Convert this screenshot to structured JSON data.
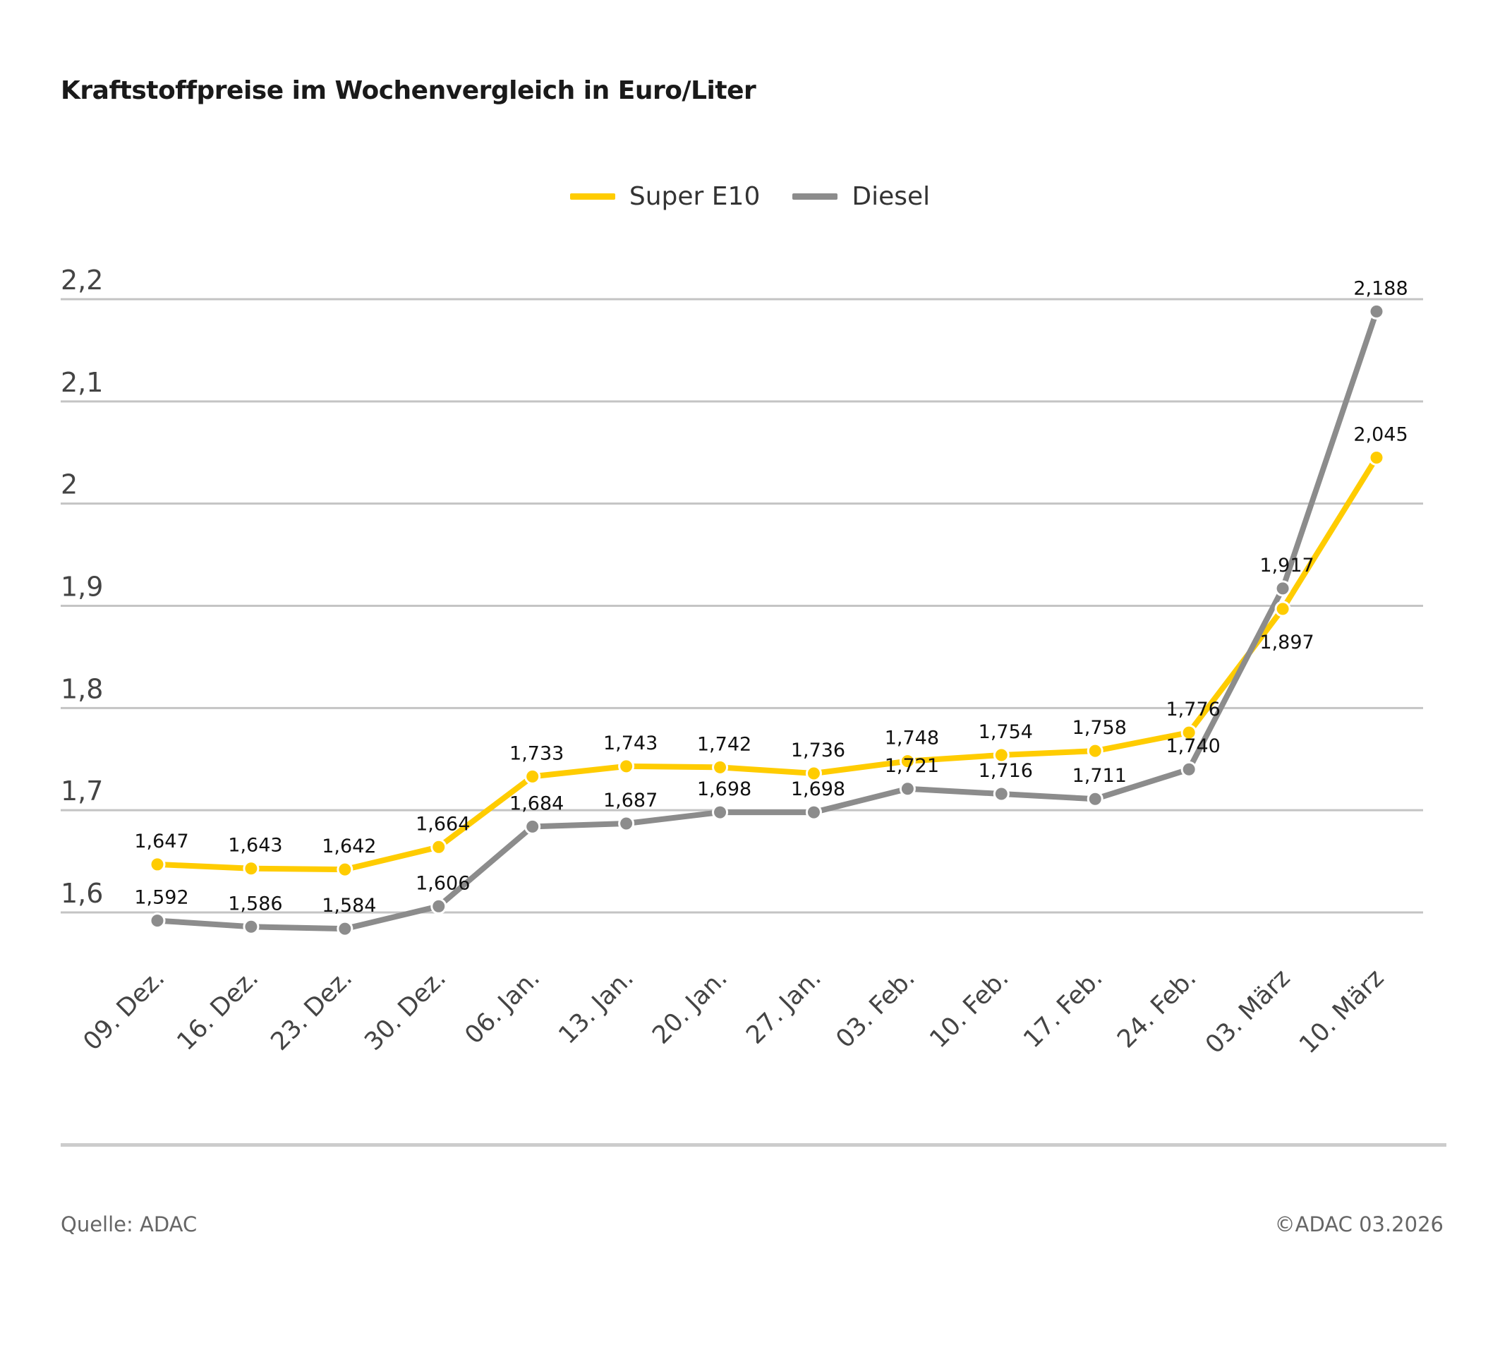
{
  "chart_data": {
    "type": "line",
    "title": "Kraftstoffpreise im Wochenvergleich in Euro/Liter",
    "categories": [
      "09. Dez.",
      "16. Dez.",
      "23. Dez.",
      "30. Dez.",
      "06. Jan.",
      "13. Jan.",
      "20. Jan.",
      "27. Jan.",
      "03. Feb.",
      "10. Feb.",
      "17. Feb.",
      "24. Feb.",
      "03. März",
      "10. März"
    ],
    "series": [
      {
        "name": "Super E10",
        "color": "#ffcc00",
        "values": [
          1.647,
          1.643,
          1.642,
          1.664,
          1.733,
          1.743,
          1.742,
          1.736,
          1.748,
          1.754,
          1.758,
          1.776,
          1.897,
          2.045
        ],
        "labels": [
          "1,647",
          "1,643",
          "1,642",
          "1,664",
          "1,733",
          "1,743",
          "1,742",
          "1,736",
          "1,748",
          "1,754",
          "1,758",
          "1,776",
          "1,897",
          "2,045"
        ]
      },
      {
        "name": "Diesel",
        "color": "#8c8c8c",
        "values": [
          1.592,
          1.586,
          1.584,
          1.606,
          1.684,
          1.687,
          1.698,
          1.698,
          1.721,
          1.716,
          1.711,
          1.74,
          1.917,
          2.188
        ],
        "labels": [
          "1,592",
          "1,586",
          "1,584",
          "1,606",
          "1,684",
          "1,687",
          "1,698",
          "1,698",
          "1,721",
          "1,716",
          "1,711",
          "1,740",
          "1,917",
          "2,188"
        ]
      }
    ],
    "yticks": [
      1.6,
      1.7,
      1.8,
      1.9,
      2.0,
      2.1,
      2.2
    ],
    "ytick_labels": [
      "1,6",
      "1,7",
      "1,8",
      "1,9",
      "2",
      "2,1",
      "2,2"
    ],
    "ylim": [
      1.6,
      2.2
    ],
    "grid": true,
    "legend_position": "top-center",
    "xlabel": "",
    "ylabel": ""
  },
  "footer": {
    "source": "Quelle: ADAC",
    "copyright": "©ADAC 03.2026"
  }
}
